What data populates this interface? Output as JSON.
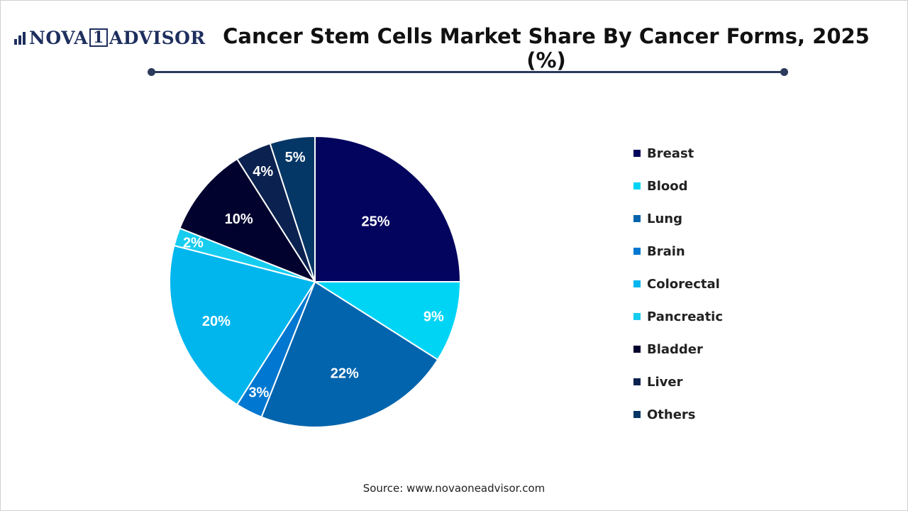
{
  "brand": {
    "logo_pre": "NOVA",
    "logo_num": "1",
    "logo_post": "ADVISOR"
  },
  "source": "Source: www.novaoneadvisor.com",
  "chart_data": {
    "type": "pie",
    "title": "Cancer Stem Cells Market Share By Cancer Forms, 2025 (%)",
    "slices": [
      {
        "name": "Breast",
        "value": 25,
        "label": "25%",
        "color": "#03045e"
      },
      {
        "name": "Blood",
        "value": 9,
        "label": "9%",
        "color": "#00d4f5"
      },
      {
        "name": "Lung",
        "value": 22,
        "label": "22%",
        "color": "#0264ad"
      },
      {
        "name": "Brain",
        "value": 3,
        "label": "3%",
        "color": "#0077d0"
      },
      {
        "name": "Colorectal",
        "value": 20,
        "label": "20%",
        "color": "#00b6ed"
      },
      {
        "name": "Pancreatic",
        "value": 2,
        "label": "2%",
        "color": "#17cdef"
      },
      {
        "name": "Bladder",
        "value": 10,
        "label": "10%",
        "color": "#02022f"
      },
      {
        "name": "Liver",
        "value": 4,
        "label": "4%",
        "color": "#0b2250"
      },
      {
        "name": "Others",
        "value": 5,
        "label": "5%",
        "color": "#053766"
      }
    ],
    "legend_position": "right"
  }
}
